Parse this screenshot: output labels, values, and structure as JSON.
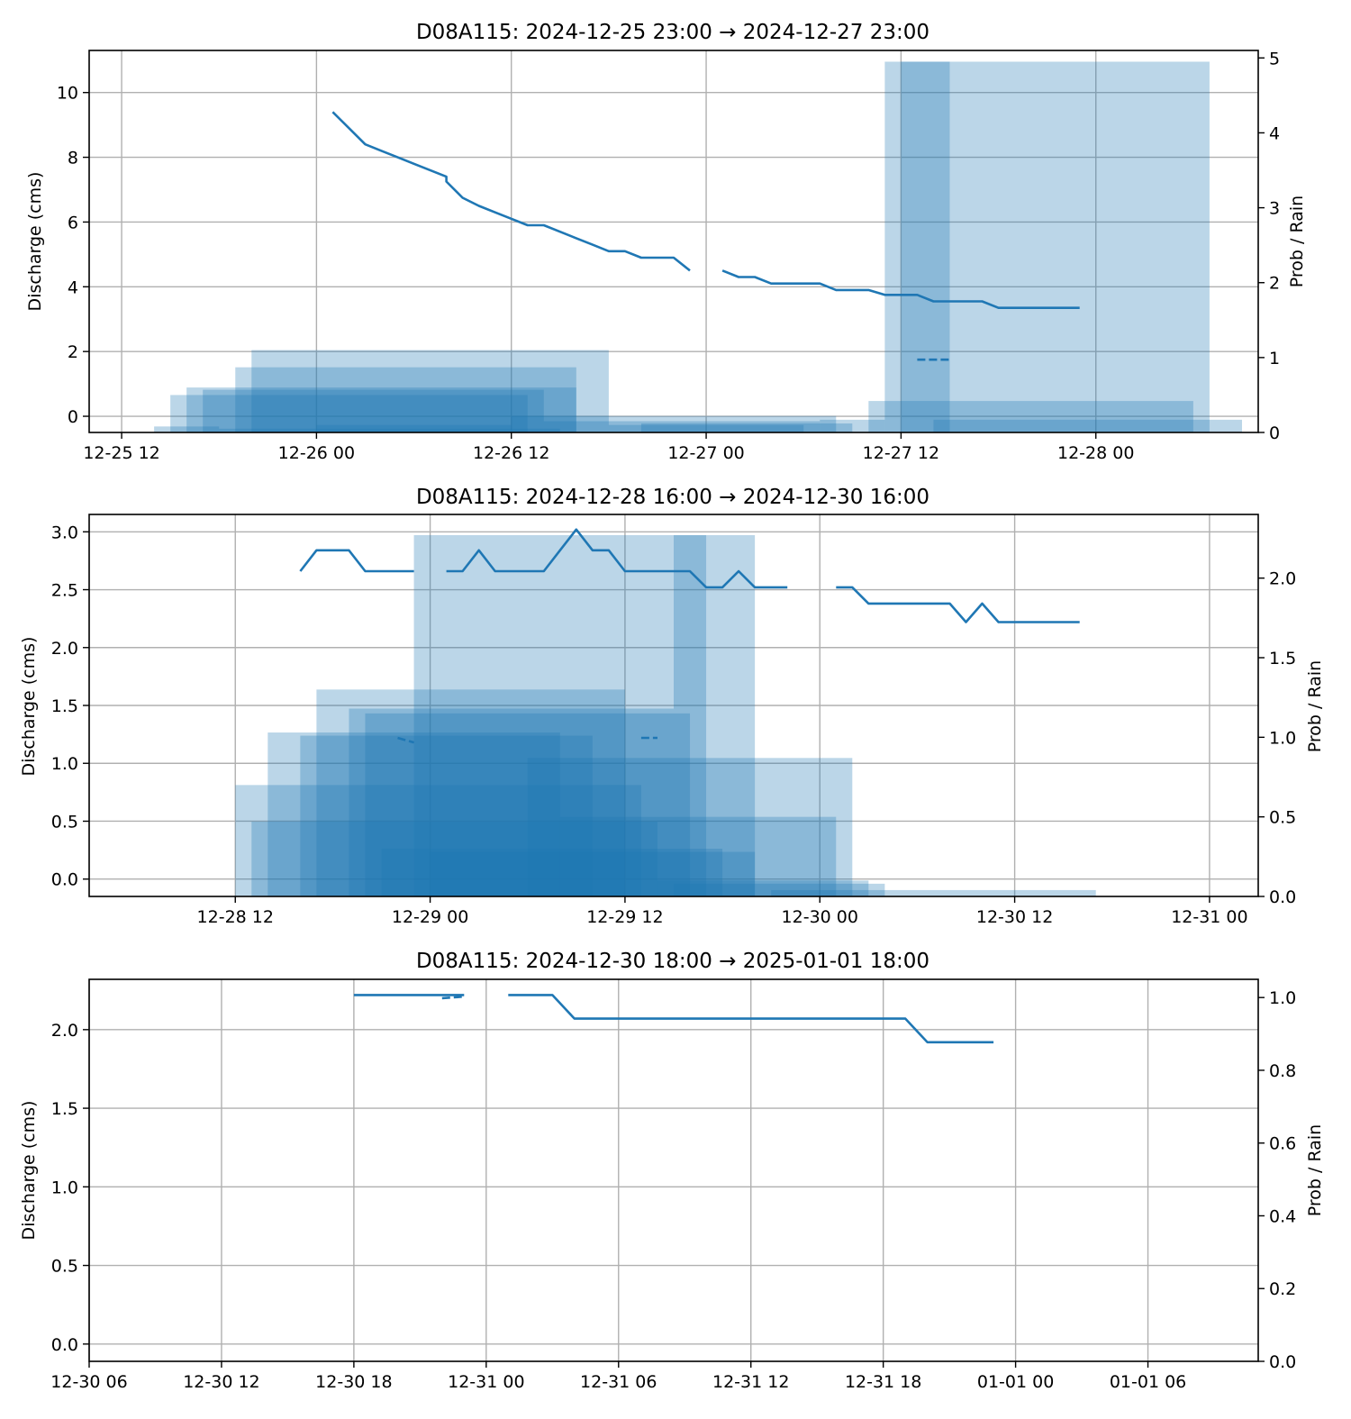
{
  "colors": {
    "line": "#1f77b4",
    "rain": "#1f77b4",
    "grid": "#b0b0b0",
    "axes": "#000000"
  },
  "chart_data": [
    {
      "type": "line",
      "title": "D08A115: 2024-12-25 23:00 → 2024-12-27 23:00",
      "ylabel": "Discharge (cms)",
      "y2label": "Prob / Rain",
      "grid": true,
      "xlim": [
        "2024-12-25 10:00",
        "2024-12-28 10:00"
      ],
      "ylim": [
        -0.5,
        11.3
      ],
      "y2lim": [
        0,
        5.1
      ],
      "xticks": [
        {
          "t": "2024-12-25 12:00",
          "label": "12-25 12"
        },
        {
          "t": "2024-12-26 00:00",
          "label": "12-26 00"
        },
        {
          "t": "2024-12-26 12:00",
          "label": "12-26 12"
        },
        {
          "t": "2024-12-27 00:00",
          "label": "12-27 00"
        },
        {
          "t": "2024-12-27 12:00",
          "label": "12-27 12"
        },
        {
          "t": "2024-12-28 00:00",
          "label": "12-28 00"
        }
      ],
      "yticks": [
        0,
        2,
        4,
        6,
        8,
        10
      ],
      "y2ticks": [
        0,
        1,
        2,
        3,
        4,
        5
      ],
      "series": [
        {
          "style": "solid",
          "points": [
            [
              "2024-12-26 01:00",
              9.4
            ],
            [
              "2024-12-26 03:00",
              8.4
            ],
            [
              "2024-12-26 04:00",
              8.2
            ],
            [
              "2024-12-26 05:00",
              8.0
            ],
            [
              "2024-12-26 06:00",
              7.8
            ],
            [
              "2024-12-26 07:00",
              7.6
            ],
            [
              "2024-12-26 08:00",
              7.4
            ],
            [
              "2024-12-26 08:00",
              7.25
            ],
            [
              "2024-12-26 09:00",
              6.75
            ],
            [
              "2024-12-26 10:00",
              6.5
            ],
            [
              "2024-12-26 11:00",
              6.3
            ],
            [
              "2024-12-26 12:00",
              6.1
            ],
            [
              "2024-12-26 13:00",
              5.9
            ],
            [
              "2024-12-26 14:00",
              5.9
            ],
            [
              "2024-12-26 15:00",
              5.7
            ],
            [
              "2024-12-26 16:00",
              5.5
            ],
            [
              "2024-12-26 17:00",
              5.3
            ],
            [
              "2024-12-26 18:00",
              5.1
            ],
            [
              "2024-12-26 19:00",
              5.1
            ],
            [
              "2024-12-26 20:00",
              4.9
            ],
            [
              "2024-12-26 21:00",
              4.9
            ],
            [
              "2024-12-26 22:00",
              4.9
            ],
            [
              "2024-12-26 23:00",
              4.5
            ]
          ]
        },
        {
          "style": "solid",
          "points": [
            [
              "2024-12-27 01:00",
              4.5
            ],
            [
              "2024-12-27 02:00",
              4.3
            ],
            [
              "2024-12-27 03:00",
              4.3
            ],
            [
              "2024-12-27 04:00",
              4.1
            ],
            [
              "2024-12-27 05:00",
              4.1
            ],
            [
              "2024-12-27 06:00",
              4.1
            ],
            [
              "2024-12-27 07:00",
              4.1
            ],
            [
              "2024-12-27 08:00",
              3.9
            ],
            [
              "2024-12-27 09:00",
              3.9
            ],
            [
              "2024-12-27 10:00",
              3.9
            ],
            [
              "2024-12-27 11:00",
              3.75
            ],
            [
              "2024-12-27 12:00",
              3.75
            ],
            [
              "2024-12-27 13:00",
              3.75
            ],
            [
              "2024-12-27 14:00",
              3.55
            ],
            [
              "2024-12-27 15:00",
              3.55
            ],
            [
              "2024-12-27 16:00",
              3.55
            ],
            [
              "2024-12-27 17:00",
              3.55
            ],
            [
              "2024-12-27 18:00",
              3.35
            ],
            [
              "2024-12-27 19:00",
              3.35
            ],
            [
              "2024-12-27 20:00",
              3.35
            ],
            [
              "2024-12-27 21:00",
              3.35
            ],
            [
              "2024-12-27 22:00",
              3.35
            ],
            [
              "2024-12-27 23:00",
              3.35
            ]
          ]
        },
        {
          "style": "dashed",
          "points": [
            [
              "2024-12-27 13:00",
              1.75
            ],
            [
              "2024-12-27 15:00",
              1.75
            ]
          ]
        }
      ],
      "rain_bars": [
        {
          "start": "2024-12-25 14:00",
          "end": "2024-12-25 18:00",
          "value": 0.08
        },
        {
          "start": "2024-12-25 15:00",
          "end": "2024-12-26 13:00",
          "value": 0.5
        },
        {
          "start": "2024-12-25 16:00",
          "end": "2024-12-26 16:00",
          "value": 0.6
        },
        {
          "start": "2024-12-25 17:00",
          "end": "2024-12-26 14:00",
          "value": 0.57
        },
        {
          "start": "2024-12-25 18:00",
          "end": "2024-12-26 15:00",
          "value": 0.05
        },
        {
          "start": "2024-12-25 19:00",
          "end": "2024-12-26 16:00",
          "value": 0.87
        },
        {
          "start": "2024-12-25 20:00",
          "end": "2024-12-26 18:00",
          "value": 1.1
        },
        {
          "start": "2024-12-26 00:00",
          "end": "2024-12-26 12:00",
          "value": 0.1
        },
        {
          "start": "2024-12-26 12:00",
          "end": "2024-12-27 08:00",
          "value": 0.22
        },
        {
          "start": "2024-12-26 14:00",
          "end": "2024-12-27 07:00",
          "value": 0.15
        },
        {
          "start": "2024-12-26 18:00",
          "end": "2024-12-27 06:00",
          "value": 0.1
        },
        {
          "start": "2024-12-26 20:00",
          "end": "2024-12-27 09:00",
          "value": 0.12
        },
        {
          "start": "2024-12-27 07:00",
          "end": "2024-12-27 11:00",
          "value": 0.17
        },
        {
          "start": "2024-12-27 10:00",
          "end": "2024-12-28 06:00",
          "value": 0.42
        },
        {
          "start": "2024-12-27 11:00",
          "end": "2024-12-27 15:00",
          "value": 4.95
        },
        {
          "start": "2024-12-27 12:00",
          "end": "2024-12-28 07:00",
          "value": 4.95
        },
        {
          "start": "2024-12-27 14:00",
          "end": "2024-12-28 09:00",
          "value": 0.17
        }
      ]
    },
    {
      "type": "line",
      "title": "D08A115: 2024-12-28 16:00 → 2024-12-30 16:00",
      "ylabel": "Discharge (cms)",
      "y2label": "Prob / Rain",
      "grid": true,
      "xlim": [
        "2024-12-28 03:00",
        "2024-12-31 03:00"
      ],
      "ylim": [
        -0.15,
        3.15
      ],
      "y2lim": [
        0,
        2.4
      ],
      "xticks": [
        {
          "t": "2024-12-28 12:00",
          "label": "12-28 12"
        },
        {
          "t": "2024-12-29 00:00",
          "label": "12-29 00"
        },
        {
          "t": "2024-12-29 12:00",
          "label": "12-29 12"
        },
        {
          "t": "2024-12-30 00:00",
          "label": "12-30 00"
        },
        {
          "t": "2024-12-30 12:00",
          "label": "12-30 12"
        },
        {
          "t": "2024-12-31 00:00",
          "label": "12-31 00"
        }
      ],
      "yticks": [
        0.0,
        0.5,
        1.0,
        1.5,
        2.0,
        2.5,
        3.0
      ],
      "ytick_labels": [
        "0.0",
        "0.5",
        "1.0",
        "1.5",
        "2.0",
        "2.5",
        "3.0"
      ],
      "y2ticks": [
        0.0,
        0.5,
        1.0,
        1.5,
        2.0
      ],
      "y2tick_labels": [
        "0.0",
        "0.5",
        "1.0",
        "1.5",
        "2.0"
      ],
      "series": [
        {
          "style": "solid",
          "points": [
            [
              "2024-12-28 16:00",
              2.66
            ],
            [
              "2024-12-28 17:00",
              2.84
            ],
            [
              "2024-12-28 18:00",
              2.84
            ],
            [
              "2024-12-28 19:00",
              2.84
            ],
            [
              "2024-12-28 20:00",
              2.66
            ],
            [
              "2024-12-28 21:00",
              2.66
            ],
            [
              "2024-12-28 22:00",
              2.66
            ],
            [
              "2024-12-28 23:00",
              2.66
            ]
          ]
        },
        {
          "style": "solid",
          "points": [
            [
              "2024-12-29 01:00",
              2.66
            ],
            [
              "2024-12-29 02:00",
              2.66
            ],
            [
              "2024-12-29 03:00",
              2.84
            ],
            [
              "2024-12-29 04:00",
              2.66
            ],
            [
              "2024-12-29 05:00",
              2.66
            ],
            [
              "2024-12-29 06:00",
              2.66
            ],
            [
              "2024-12-29 07:00",
              2.66
            ],
            [
              "2024-12-29 08:00",
              2.84
            ],
            [
              "2024-12-29 09:00",
              3.02
            ],
            [
              "2024-12-29 10:00",
              2.84
            ],
            [
              "2024-12-29 11:00",
              2.84
            ],
            [
              "2024-12-29 12:00",
              2.66
            ],
            [
              "2024-12-29 13:00",
              2.66
            ],
            [
              "2024-12-29 14:00",
              2.66
            ],
            [
              "2024-12-29 15:00",
              2.66
            ],
            [
              "2024-12-29 16:00",
              2.66
            ],
            [
              "2024-12-29 17:00",
              2.52
            ],
            [
              "2024-12-29 18:00",
              2.52
            ],
            [
              "2024-12-29 19:00",
              2.66
            ],
            [
              "2024-12-29 20:00",
              2.52
            ],
            [
              "2024-12-29 21:00",
              2.52
            ],
            [
              "2024-12-29 22:00",
              2.52
            ]
          ]
        },
        {
          "style": "solid",
          "points": [
            [
              "2024-12-30 01:00",
              2.52
            ],
            [
              "2024-12-30 02:00",
              2.52
            ],
            [
              "2024-12-30 03:00",
              2.38
            ],
            [
              "2024-12-30 04:00",
              2.38
            ],
            [
              "2024-12-30 05:00",
              2.38
            ],
            [
              "2024-12-30 06:00",
              2.38
            ],
            [
              "2024-12-30 07:00",
              2.38
            ],
            [
              "2024-12-30 08:00",
              2.38
            ],
            [
              "2024-12-30 09:00",
              2.22
            ],
            [
              "2024-12-30 10:00",
              2.38
            ],
            [
              "2024-12-30 11:00",
              2.22
            ],
            [
              "2024-12-30 12:00",
              2.22
            ],
            [
              "2024-12-30 13:00",
              2.22
            ],
            [
              "2024-12-30 14:00",
              2.22
            ],
            [
              "2024-12-30 15:00",
              2.22
            ],
            [
              "2024-12-30 16:00",
              2.22
            ]
          ]
        },
        {
          "style": "dashed",
          "points": [
            [
              "2024-12-28 22:00",
              1.22
            ],
            [
              "2024-12-28 23:00",
              1.18
            ]
          ]
        },
        {
          "style": "dashed",
          "points": [
            [
              "2024-12-29 13:00",
              1.22
            ],
            [
              "2024-12-29 14:00",
              1.22
            ]
          ]
        }
      ],
      "rain_bars": [
        {
          "start": "2024-12-28 12:00",
          "end": "2024-12-29 13:00",
          "value": 0.7
        },
        {
          "start": "2024-12-28 13:00",
          "end": "2024-12-29 14:00",
          "value": 0.47
        },
        {
          "start": "2024-12-28 14:00",
          "end": "2024-12-29 08:00",
          "value": 1.03
        },
        {
          "start": "2024-12-28 16:00",
          "end": "2024-12-29 10:00",
          "value": 1.01
        },
        {
          "start": "2024-12-28 17:00",
          "end": "2024-12-29 12:00",
          "value": 1.3
        },
        {
          "start": "2024-12-28 19:00",
          "end": "2024-12-29 15:00",
          "value": 1.18
        },
        {
          "start": "2024-12-28 20:00",
          "end": "2024-12-29 16:00",
          "value": 1.15
        },
        {
          "start": "2024-12-28 21:00",
          "end": "2024-12-29 18:00",
          "value": 0.3
        },
        {
          "start": "2024-12-28 23:00",
          "end": "2024-12-29 17:00",
          "value": 2.27
        },
        {
          "start": "2024-12-29 00:00",
          "end": "2024-12-29 20:00",
          "value": 0.28
        },
        {
          "start": "2024-12-29 06:00",
          "end": "2024-12-30 02:00",
          "value": 0.87
        },
        {
          "start": "2024-12-29 08:00",
          "end": "2024-12-30 01:00",
          "value": 0.5
        },
        {
          "start": "2024-12-29 14:00",
          "end": "2024-12-30 03:00",
          "value": 0.1
        },
        {
          "start": "2024-12-29 15:00",
          "end": "2024-12-30 04:00",
          "value": 0.08
        },
        {
          "start": "2024-12-29 15:00",
          "end": "2024-12-29 20:00",
          "value": 2.27
        },
        {
          "start": "2024-12-29 21:00",
          "end": "2024-12-30 17:00",
          "value": 0.04
        }
      ]
    },
    {
      "type": "line",
      "title": "D08A115: 2024-12-30 18:00 → 2025-01-01 18:00",
      "ylabel": "Discharge (cms)",
      "y2label": "Prob / Rain",
      "grid": true,
      "xlim": [
        "2024-12-30 06:00",
        "2025-01-01 11:00"
      ],
      "ylim": [
        -0.11,
        2.32
      ],
      "y2lim": [
        0,
        1.05
      ],
      "xticks": [
        {
          "t": "2024-12-30 06:00",
          "label": "12-30 06"
        },
        {
          "t": "2024-12-30 12:00",
          "label": "12-30 12"
        },
        {
          "t": "2024-12-30 18:00",
          "label": "12-30 18"
        },
        {
          "t": "2024-12-31 00:00",
          "label": "12-31 00"
        },
        {
          "t": "2024-12-31 06:00",
          "label": "12-31 06"
        },
        {
          "t": "2024-12-31 12:00",
          "label": "12-31 12"
        },
        {
          "t": "2024-12-31 18:00",
          "label": "12-31 18"
        },
        {
          "t": "2025-01-01 00:00",
          "label": "01-01 00"
        },
        {
          "t": "2025-01-01 06:00",
          "label": "01-01 06"
        }
      ],
      "yticks": [
        0.0,
        0.5,
        1.0,
        1.5,
        2.0
      ],
      "ytick_labels": [
        "0.0",
        "0.5",
        "1.0",
        "1.5",
        "2.0"
      ],
      "y2ticks": [
        0.0,
        0.2,
        0.4,
        0.6,
        0.8,
        1.0
      ],
      "y2tick_labels": [
        "0.0",
        "0.2",
        "0.4",
        "0.6",
        "0.8",
        "1.0"
      ],
      "series": [
        {
          "style": "solid",
          "points": [
            [
              "2024-12-30 18:00",
              2.22
            ],
            [
              "2024-12-30 23:00",
              2.22
            ]
          ]
        },
        {
          "style": "solid",
          "points": [
            [
              "2024-12-31 01:00",
              2.22
            ],
            [
              "2024-12-31 03:00",
              2.22
            ],
            [
              "2024-12-31 04:00",
              2.07
            ],
            [
              "2024-12-31 19:00",
              2.07
            ],
            [
              "2024-12-31 20:00",
              1.92
            ],
            [
              "2024-12-31 23:00",
              1.92
            ]
          ]
        },
        {
          "style": "dashed",
          "points": [
            [
              "2024-12-30 22:00",
              2.2
            ],
            [
              "2024-12-30 23:00",
              2.21
            ]
          ]
        }
      ],
      "rain_bars": []
    }
  ]
}
